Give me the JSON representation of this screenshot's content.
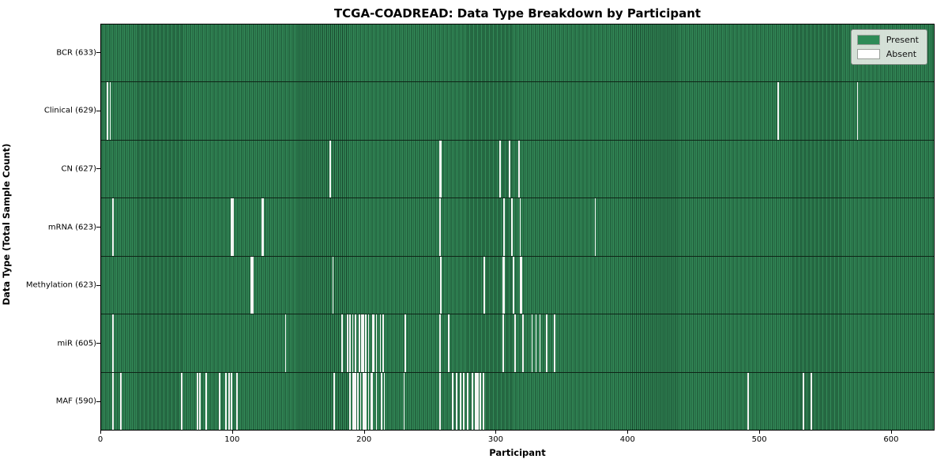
{
  "title": "TCGA-COADREAD: Data Type Breakdown by Participant",
  "chart_data": {
    "type": "heatmap",
    "title": "TCGA-COADREAD: Data Type Breakdown by Participant",
    "xlabel": "Participant",
    "ylabel": "Data Type (Total Sample Count)",
    "xlim": [
      0,
      633
    ],
    "x_ticks": [
      0,
      100,
      200,
      300,
      400,
      500,
      600
    ],
    "n_participants": 633,
    "grid": false,
    "legend_position": "upper right",
    "legend": [
      {
        "label": "Present",
        "color": "#2e8b57"
      },
      {
        "label": "Absent",
        "color": "#ffffff"
      }
    ],
    "colors": {
      "present": "#2e8b57",
      "present_edge": "#17452c",
      "absent": "#f4f6f4",
      "row_divider": "#0e2417",
      "legend_bg": "#e3e9e3"
    },
    "rows": [
      {
        "label": "BCR (633)",
        "data_type": "BCR",
        "total": 633,
        "absent_count": 0,
        "absent": []
      },
      {
        "label": "Clinical (629)",
        "data_type": "Clinical",
        "total": 629,
        "absent_count": 4,
        "absent": [
          5,
          7,
          514,
          574
        ]
      },
      {
        "label": "CN (627)",
        "data_type": "CN",
        "total": 627,
        "absent_count": 6,
        "absent": [
          174,
          257,
          258,
          303,
          310,
          317
        ]
      },
      {
        "label": "mRNA (623)",
        "data_type": "mRNA",
        "total": 623,
        "absent_count": 10,
        "absent": [
          9,
          99,
          100,
          122,
          123,
          257,
          306,
          312,
          318,
          375
        ]
      },
      {
        "label": "Methylation (623)",
        "data_type": "Methylation",
        "total": 623,
        "absent_count": 10,
        "absent": [
          114,
          115,
          176,
          258,
          291,
          305,
          306,
          313,
          318,
          319
        ]
      },
      {
        "label": "miR (605)",
        "data_type": "miR",
        "total": 605,
        "absent_count": 28,
        "absent": [
          9,
          140,
          183,
          187,
          189,
          191,
          193,
          196,
          198,
          199,
          201,
          203,
          206,
          207,
          209,
          212,
          214,
          231,
          257,
          264,
          305,
          314,
          320,
          327,
          330,
          333,
          338,
          344
        ]
      },
      {
        "label": "MAF (590)",
        "data_type": "MAF",
        "total": 590,
        "absent_count": 43,
        "absent": [
          9,
          15,
          61,
          73,
          75,
          80,
          90,
          95,
          97,
          99,
          103,
          177,
          189,
          191,
          192,
          193,
          195,
          197,
          199,
          200,
          201,
          203,
          205,
          206,
          209,
          213,
          215,
          230,
          257,
          267,
          270,
          273,
          275,
          278,
          282,
          284,
          285,
          286,
          288,
          290,
          491,
          533,
          539
        ]
      }
    ]
  }
}
